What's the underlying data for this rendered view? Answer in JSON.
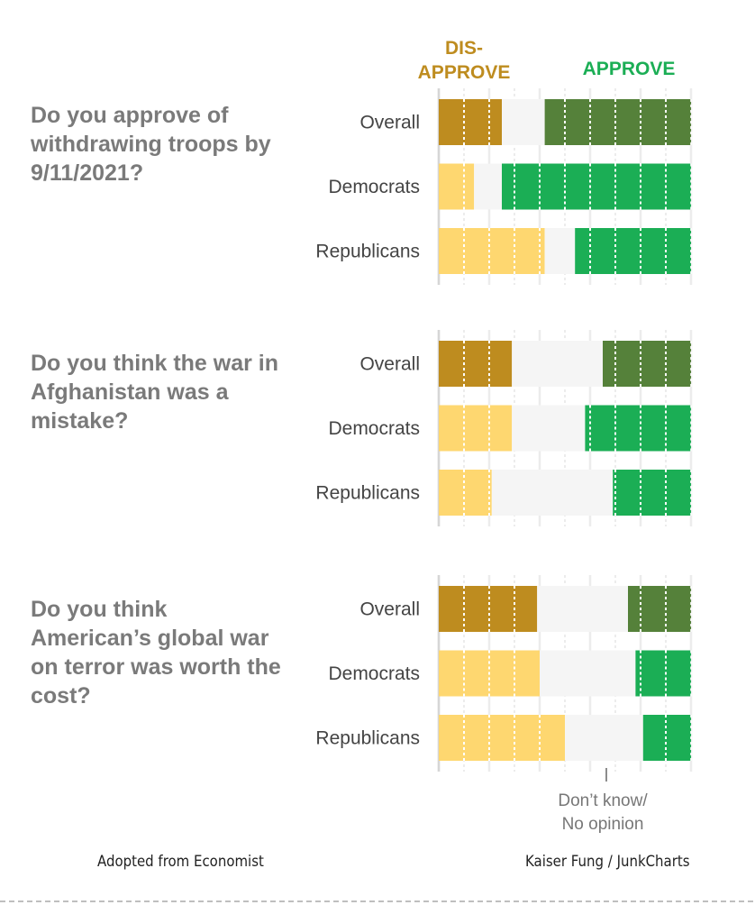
{
  "chart_data": {
    "type": "bar",
    "stacked": true,
    "orientation": "horizontal",
    "xlim": [
      0,
      100
    ],
    "grid": true,
    "header_labels": {
      "disapprove": "DIS-\nAPPROVE",
      "approve": "APPROVE"
    },
    "dont_know_label": "Don’t know/\nNo opinion",
    "colors": {
      "overall_disapprove": "#BE8C1F",
      "party_disapprove": "#FED770",
      "dont_know": "#F5F5F5",
      "overall_approve": "#55813A",
      "party_approve": "#1BAE55",
      "disapprove_header": "#BE8C1F",
      "approve_header": "#1BAE55"
    },
    "panels": [
      {
        "question": "Do you approve of withdrawing troops by 9/11/2021?",
        "categories": [
          "Overall",
          "Democrats",
          "Republicans"
        ],
        "series": [
          {
            "name": "Disapprove",
            "values": [
              25,
              14,
              42
            ]
          },
          {
            "name": "Don't know/No opinion",
            "values": [
              17,
              11,
              12
            ]
          },
          {
            "name": "Approve",
            "values": [
              58,
              75,
              46
            ]
          }
        ]
      },
      {
        "question": "Do you think the war in Afghanistan was a mistake?",
        "categories": [
          "Overall",
          "Democrats",
          "Republicans"
        ],
        "series": [
          {
            "name": "Disapprove",
            "values": [
              29,
              29,
              21
            ]
          },
          {
            "name": "Don't know/No opinion",
            "values": [
              36,
              29,
              48
            ]
          },
          {
            "name": "Approve",
            "values": [
              35,
              42,
              31
            ]
          }
        ]
      },
      {
        "question": "Do you think American’s global war on terror was worth the cost?",
        "categories": [
          "Overall",
          "Democrats",
          "Republicans"
        ],
        "series": [
          {
            "name": "Disapprove",
            "values": [
              39,
              40,
              50
            ]
          },
          {
            "name": "Don't know/No opinion",
            "values": [
              36,
              38,
              31
            ]
          },
          {
            "name": "Approve",
            "values": [
              25,
              22,
              19
            ]
          }
        ]
      }
    ]
  },
  "footer": {
    "left": "Adopted from Economist",
    "right": "Kaiser Fung / JunkCharts"
  }
}
